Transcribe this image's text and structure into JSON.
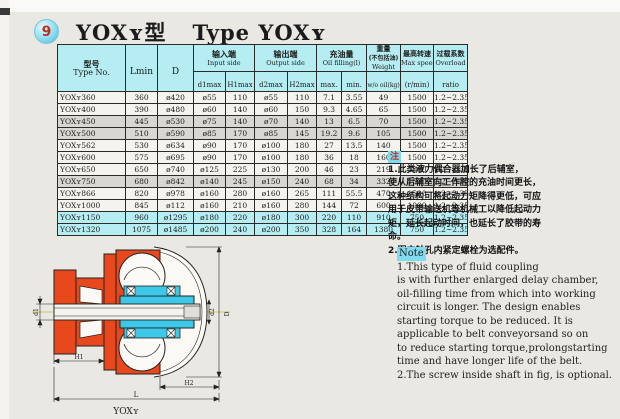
{
  "page": {
    "badge": "9",
    "title_cn": "YOXʏ型",
    "title_en": "Type YOXʏ"
  },
  "table": {
    "col_headers": {
      "type_cn": "型号",
      "type_en": "Type No.",
      "lmin": "Lmin",
      "d": "D",
      "input_cn": "输入端",
      "input_en": "Input side",
      "output_cn": "输出端",
      "output_en": "Output side",
      "oil_cn": "充油量",
      "oil_en": "Oil filling(l)",
      "weight_cn": "重量",
      "weight_cn2": "(不包括油)",
      "weight_en": "Weight",
      "speed_cn": "最高转速",
      "speed_en": "Max speed",
      "overload_cn": "过载系数",
      "overload_en": "Overload",
      "d1max": "d1max",
      "h1max": "H1max",
      "d2max": "d2max",
      "h2max": "H2max",
      "oil_max": "max.",
      "oil_min": "min.",
      "weight_unit": "w/o oil(kg)",
      "speed_unit": "(r/min)",
      "ratio": "ratio"
    },
    "rows": [
      {
        "type": "YOXʏ360",
        "lmin": "360",
        "d": "ø420",
        "d1max": "ø55",
        "h1max": "110",
        "d2max": "ø55",
        "h2max": "110",
        "oil_max": "7.1",
        "oil_min": "3.55",
        "weight": "49",
        "speed": "1500",
        "ratio": "1.2~2.35",
        "shade": "none"
      },
      {
        "type": "YOXʏ400",
        "lmin": "390",
        "d": "ø480",
        "d1max": "ø60",
        "h1max": "140",
        "d2max": "ø60",
        "h2max": "150",
        "oil_max": "9.3",
        "oil_min": "4.65",
        "weight": "65",
        "speed": "1500",
        "ratio": "1.2~2.35",
        "shade": "none"
      },
      {
        "type": "YOXʏ450",
        "lmin": "445",
        "d": "ø530",
        "d1max": "ø75",
        "h1max": "140",
        "d2max": "ø70",
        "h2max": "140",
        "oil_max": "13",
        "oil_min": "6.5",
        "weight": "70",
        "speed": "1500",
        "ratio": "1.2~2.35",
        "shade": "gray"
      },
      {
        "type": "YOXʏ500",
        "lmin": "510",
        "d": "ø590",
        "d1max": "ø85",
        "h1max": "170",
        "d2max": "ø85",
        "h2max": "145",
        "oil_max": "19.2",
        "oil_min": "9.6",
        "weight": "105",
        "speed": "1500",
        "ratio": "1.2~2.35",
        "shade": "gray"
      },
      {
        "type": "YOXʏ562",
        "lmin": "530",
        "d": "ø634",
        "d1max": "ø90",
        "h1max": "170",
        "d2max": "ø100",
        "h2max": "180",
        "oil_max": "27",
        "oil_min": "13.5",
        "weight": "140",
        "speed": "1500",
        "ratio": "1.2~2.35",
        "shade": "none"
      },
      {
        "type": "YOXʏ600",
        "lmin": "575",
        "d": "ø695",
        "d1max": "ø90",
        "h1max": "170",
        "d2max": "ø100",
        "h2max": "180",
        "oil_max": "36",
        "oil_min": "18",
        "weight": "160",
        "speed": "1500",
        "ratio": "1.2~2.35",
        "shade": "none"
      },
      {
        "type": "YOXʏ650",
        "lmin": "650",
        "d": "ø740",
        "d1max": "ø125",
        "h1max": "225",
        "d2max": "ø130",
        "h2max": "200",
        "oil_max": "46",
        "oil_min": "23",
        "weight": "219",
        "speed": "3000",
        "ratio": "1.2~2.35",
        "shade": "none"
      },
      {
        "type": "YOXʏ750",
        "lmin": "680",
        "d": "ø842",
        "d1max": "ø140",
        "h1max": "245",
        "d2max": "ø150",
        "h2max": "240",
        "oil_max": "68",
        "oil_min": "34",
        "weight": "332",
        "speed": "1500",
        "ratio": "1.2~2.35",
        "shade": "gray"
      },
      {
        "type": "YOXʏ866",
        "lmin": "820",
        "d": "ø978",
        "d1max": "ø160",
        "h1max": "280",
        "d2max": "ø160",
        "h2max": "265",
        "oil_max": "111",
        "oil_min": "55.5",
        "weight": "470",
        "speed": "1500",
        "ratio": "1.2~2.35",
        "shade": "none"
      },
      {
        "type": "YOXʏ1000",
        "lmin": "845",
        "d": "ø112",
        "d1max": "ø160",
        "h1max": "210",
        "d2max": "ø160",
        "h2max": "280",
        "oil_max": "144",
        "oil_min": "72",
        "weight": "600",
        "speed": "1000",
        "ratio": "1.2~2.35",
        "shade": "none"
      },
      {
        "type": "YOXʏ1150",
        "lmin": "960",
        "d": "ø1295",
        "d1max": "ø180",
        "h1max": "220",
        "d2max": "ø180",
        "h2max": "300",
        "oil_max": "220",
        "oil_min": "110",
        "weight": "910",
        "speed": "750",
        "ratio": "1.2~2.35",
        "shade": "cyan"
      },
      {
        "type": "YOXʏ1320",
        "lmin": "1075",
        "d": "ø1485",
        "d1max": "ø200",
        "h1max": "240",
        "d2max": "ø200",
        "h2max": "350",
        "oil_max": "328",
        "oil_min": "164",
        "weight": "1380",
        "speed": "750",
        "ratio": "1.2~2.35",
        "shade": "cyan"
      }
    ]
  },
  "notes_cn": {
    "marker": "注",
    "lines": [
      "1.此类液力偶合器加长了后辅室，",
      "使从后辅室向工作腔的充油时间更长，",
      "这种结构可将起动力矩降得更低，可应",
      "用于皮带输送机等机械工以降低起动力",
      "矩，延长起动时间，也延长了胶带的寿",
      "命。",
      "2.图中轴孔内紧定螺栓为选配件。"
    ]
  },
  "notes_en": {
    "marker": "Note",
    "lines": [
      "1.This type of fluid coupling",
      "is with further enlarged delay chamber,",
      "oil-filling time from which into working",
      "circuit is longer. The design enables",
      "starting torque to be reduced. It is",
      "applicable to belt conveyorsand so on",
      "to reduce starting torque,prolongstarting",
      "time and have longer life of the belt.",
      "2.The screw inside shaft in fig, is optional."
    ]
  },
  "drawing": {
    "caption": "YOXʏ",
    "labels": {
      "d1": "d1",
      "d2": "d2",
      "D": "D",
      "H1": "H1",
      "H2": "H2",
      "L": "L"
    }
  },
  "colors": {
    "header_cyan": "#b5edf2",
    "row_cyan": "#b5edf2",
    "row_gray": "#d8d7d2",
    "orange": "#e8481c",
    "drawing_cyan": "#3cc8e6",
    "badge_red": "#c03022"
  }
}
